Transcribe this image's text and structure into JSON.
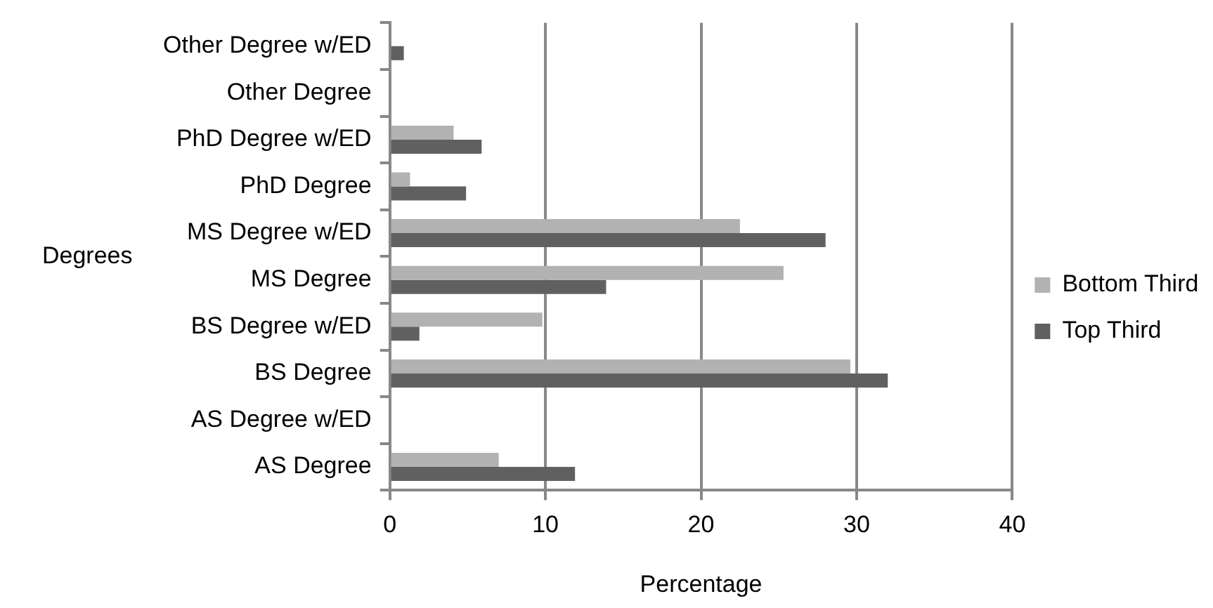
{
  "chart_data": {
    "type": "bar",
    "orientation": "horizontal",
    "xlabel": "Percentage",
    "ylabel": "Degrees",
    "categories": [
      "Other Degree w/ED",
      "Other Degree",
      "PhD Degree w/ED",
      "PhD Degree",
      "MS Degree w/ED",
      "MS Degree",
      "BS Degree w/ED",
      "BS Degree",
      "AS Degree w/ED",
      "AS Degree"
    ],
    "series": [
      {
        "name": "Bottom Third",
        "color": "#b2b2b2",
        "values": [
          0,
          0,
          4.1,
          1.3,
          22.5,
          25.3,
          9.8,
          29.6,
          0,
          7.0
        ]
      },
      {
        "name": "Top Third",
        "color": "#606060",
        "values": [
          0.9,
          0,
          5.9,
          4.9,
          28.0,
          13.9,
          1.9,
          32.0,
          0,
          11.9
        ]
      }
    ],
    "xlim": [
      0,
      40
    ],
    "xticks": [
      0,
      10,
      20,
      30,
      40
    ],
    "grid": "x",
    "legend": "right"
  }
}
